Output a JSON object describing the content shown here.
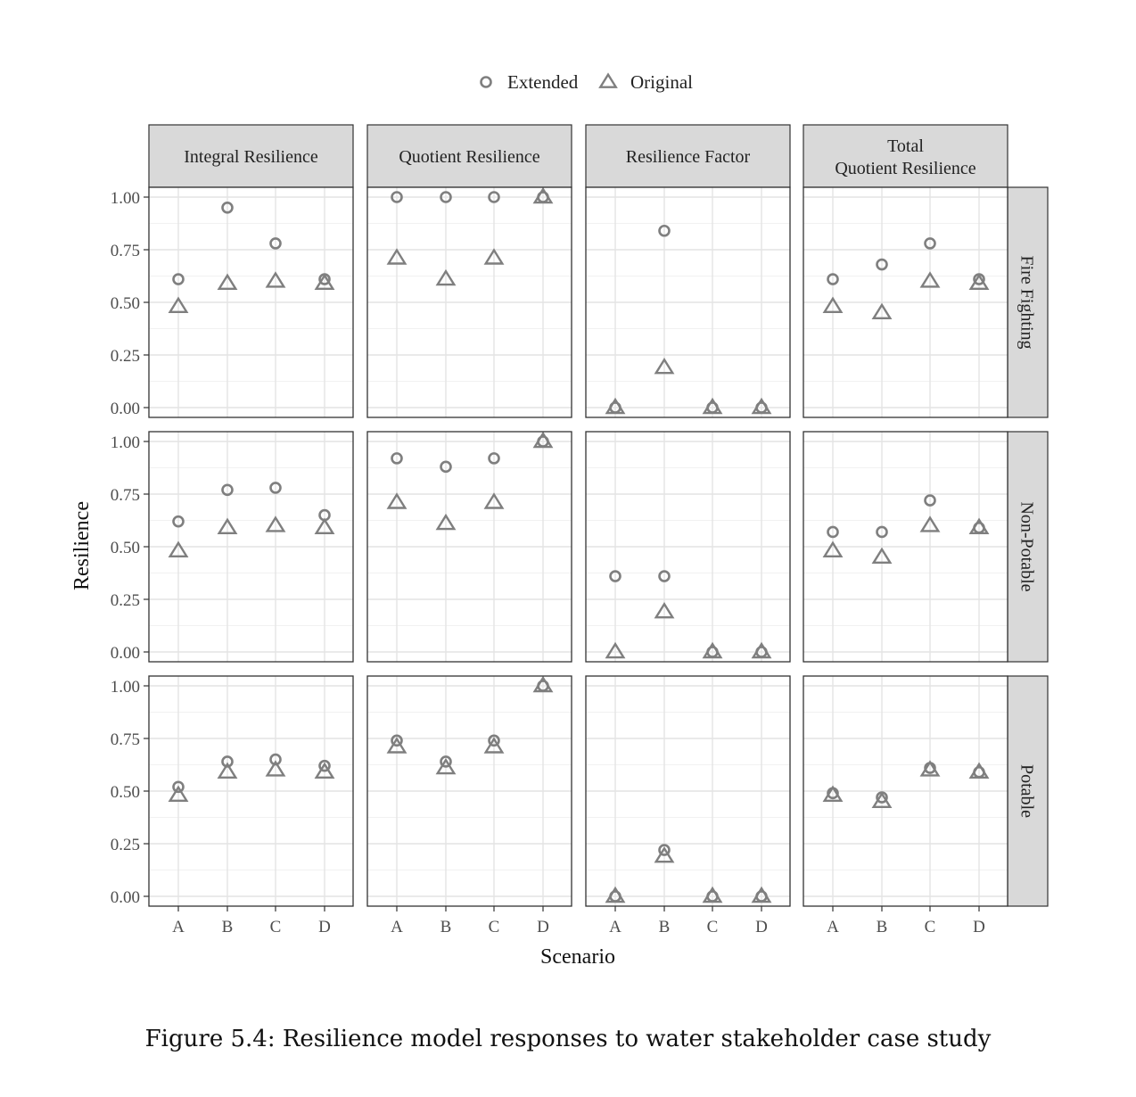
{
  "caption": "Figure 5.4: Resilience model responses to water stakeholder case study",
  "chart_data": {
    "type": "scatter",
    "layout": "facet-grid",
    "xlabel": "Scenario",
    "ylabel": "Resilience",
    "categories": [
      "A",
      "B",
      "C",
      "D"
    ],
    "ylim": [
      0,
      1
    ],
    "yticks": [
      "0.00",
      "0.25",
      "0.50",
      "0.75",
      "1.00"
    ],
    "grid": true,
    "legend_position": "top",
    "legend": [
      {
        "name": "Extended",
        "shape": "circle"
      },
      {
        "name": "Original",
        "shape": "triangle"
      }
    ],
    "columns": [
      "Integral Resilience",
      "Quotient Resilience",
      "Resilience Factor",
      "Total\nQuotient Resilience"
    ],
    "rows": [
      "Fire Fighting",
      "Non-Potable",
      "Potable"
    ],
    "marker_color": "#7f7f7f",
    "panels": [
      [
        {
          "Extended": [
            0.61,
            0.95,
            0.78,
            0.61
          ],
          "Original": [
            0.48,
            0.59,
            0.6,
            0.59
          ]
        },
        {
          "Extended": [
            1.0,
            1.0,
            1.0,
            1.0
          ],
          "Original": [
            0.71,
            0.61,
            0.71,
            1.0
          ]
        },
        {
          "Extended": [
            0.0,
            0.84,
            0.0,
            0.0
          ],
          "Original": [
            0.0,
            0.19,
            0.0,
            0.0
          ]
        },
        {
          "Extended": [
            0.61,
            0.68,
            0.78,
            0.61
          ],
          "Original": [
            0.48,
            0.45,
            0.6,
            0.59
          ]
        }
      ],
      [
        {
          "Extended": [
            0.62,
            0.77,
            0.78,
            0.65
          ],
          "Original": [
            0.48,
            0.59,
            0.6,
            0.59
          ]
        },
        {
          "Extended": [
            0.92,
            0.88,
            0.92,
            1.0
          ],
          "Original": [
            0.71,
            0.61,
            0.71,
            1.0
          ]
        },
        {
          "Extended": [
            0.36,
            0.36,
            0.0,
            0.0
          ],
          "Original": [
            0.0,
            0.19,
            0.0,
            0.0
          ]
        },
        {
          "Extended": [
            0.57,
            0.57,
            0.72,
            0.59
          ],
          "Original": [
            0.48,
            0.45,
            0.6,
            0.59
          ]
        }
      ],
      [
        {
          "Extended": [
            0.52,
            0.64,
            0.65,
            0.62
          ],
          "Original": [
            0.48,
            0.59,
            0.6,
            0.59
          ]
        },
        {
          "Extended": [
            0.74,
            0.64,
            0.74,
            1.0
          ],
          "Original": [
            0.71,
            0.61,
            0.71,
            1.0
          ]
        },
        {
          "Extended": [
            0.0,
            0.22,
            0.0,
            0.0
          ],
          "Original": [
            0.0,
            0.19,
            0.0,
            0.0
          ]
        },
        {
          "Extended": [
            0.49,
            0.47,
            0.61,
            0.59
          ],
          "Original": [
            0.48,
            0.45,
            0.6,
            0.59
          ]
        }
      ]
    ]
  }
}
